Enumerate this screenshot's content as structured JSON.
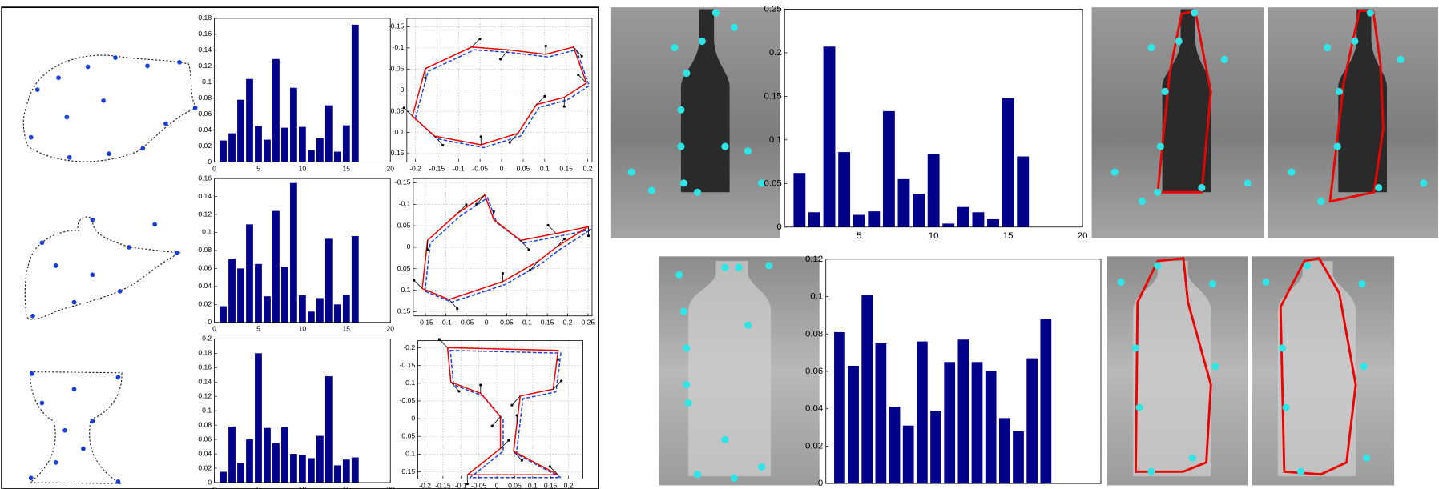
{
  "chart_data": [
    {
      "type": "bar",
      "color": "#00008b",
      "categories": [
        "1",
        "2",
        "3",
        "4",
        "5",
        "6",
        "7",
        "8",
        "9",
        "10",
        "11",
        "12",
        "13",
        "14",
        "15",
        "16"
      ],
      "values": [
        0.027,
        0.036,
        0.078,
        0.104,
        0.045,
        0.028,
        0.129,
        0.043,
        0.093,
        0.044,
        0.015,
        0.03,
        0.071,
        0.013,
        0.046,
        0.172
      ],
      "xlim": [
        0,
        20
      ],
      "xticks": [
        0,
        5,
        10,
        15,
        20
      ],
      "ylim": [
        0,
        0.18
      ],
      "yticks": [
        0,
        0.02,
        0.04,
        0.06,
        0.08,
        0.1,
        0.12,
        0.14,
        0.16,
        0.18
      ],
      "grid": false
    },
    {
      "type": "shape",
      "xlim": [
        -0.22,
        0.21
      ],
      "xticks": [
        -0.2,
        -0.15,
        -0.1,
        -0.05,
        0,
        0.05,
        0.1,
        0.15,
        0.2
      ],
      "ylim": [
        -0.17,
        0.17
      ],
      "yticks": [
        -0.15,
        -0.1,
        -0.05,
        0,
        0.05,
        0.1,
        0.15
      ],
      "y_inverted": true,
      "grid": true
    },
    {
      "type": "bar",
      "color": "#00008b",
      "categories": [
        "1",
        "2",
        "3",
        "4",
        "5",
        "6",
        "7",
        "8",
        "9",
        "10",
        "11",
        "12",
        "13",
        "14",
        "15",
        "16"
      ],
      "values": [
        0.018,
        0.071,
        0.06,
        0.109,
        0.065,
        0.029,
        0.124,
        0.062,
        0.155,
        0.03,
        0.012,
        0.027,
        0.093,
        0.02,
        0.031,
        0.096
      ],
      "xlim": [
        0,
        20
      ],
      "xticks": [
        0,
        5,
        10,
        15,
        20
      ],
      "ylim": [
        0,
        0.16
      ],
      "yticks": [
        0,
        0.02,
        0.04,
        0.06,
        0.08,
        0.1,
        0.12,
        0.14,
        0.16
      ],
      "grid": false
    },
    {
      "type": "shape",
      "xlim": [
        -0.18,
        0.26
      ],
      "xticks": [
        -0.15,
        -0.1,
        -0.05,
        0,
        0.05,
        0.1,
        0.15,
        0.2,
        0.25
      ],
      "ylim": [
        -0.16,
        0.16
      ],
      "yticks": [
        -0.15,
        -0.1,
        -0.05,
        0,
        0.05,
        0.1,
        0.15
      ],
      "y_inverted": true,
      "grid": true
    },
    {
      "type": "bar",
      "color": "#00008b",
      "categories": [
        "1",
        "2",
        "3",
        "4",
        "5",
        "6",
        "7",
        "8",
        "9",
        "10",
        "11",
        "12",
        "13",
        "14",
        "15",
        "16"
      ],
      "values": [
        0.015,
        0.078,
        0.027,
        0.06,
        0.18,
        0.076,
        0.055,
        0.077,
        0.04,
        0.039,
        0.034,
        0.065,
        0.148,
        0.024,
        0.032,
        0.035
      ],
      "xlim": [
        0,
        20
      ],
      "xticks": [
        0,
        5,
        10,
        15,
        20
      ],
      "ylim": [
        0,
        0.2
      ],
      "yticks": [
        0,
        0.02,
        0.04,
        0.06,
        0.08,
        0.1,
        0.12,
        0.14,
        0.16,
        0.18,
        0.2
      ],
      "grid": false
    },
    {
      "type": "shape",
      "xlim": [
        -0.22,
        0.24
      ],
      "xticks": [
        -0.2,
        -0.15,
        -0.1,
        -0.05,
        0,
        0.05,
        0.1,
        0.15,
        0.2
      ],
      "ylim": [
        -0.22,
        0.17
      ],
      "yticks": [
        -0.2,
        -0.15,
        -0.1,
        -0.05,
        0,
        0.05,
        0.1,
        0.15
      ],
      "y_inverted": true,
      "grid": true
    },
    {
      "type": "bar",
      "color": "#00008b",
      "categories": [
        "1",
        "2",
        "3",
        "4",
        "5",
        "6",
        "7",
        "8",
        "9",
        "10",
        "11",
        "12",
        "13",
        "14",
        "15",
        "16"
      ],
      "values": [
        0.062,
        0.017,
        0.207,
        0.086,
        0.014,
        0.018,
        0.133,
        0.055,
        0.038,
        0.084,
        0.004,
        0.023,
        0.017,
        0.009,
        0.148,
        0.081
      ],
      "xlim": [
        0,
        20
      ],
      "xticks": [
        5,
        10,
        15,
        20
      ],
      "ylim": [
        0,
        0.25
      ],
      "yticks": [
        0,
        0.05,
        0.1,
        0.15,
        0.2,
        0.25
      ],
      "grid": false
    },
    {
      "type": "bar",
      "color": "#00008b",
      "categories": [
        "1",
        "2",
        "3",
        "4",
        "5",
        "6",
        "7",
        "8",
        "9",
        "10",
        "11",
        "12",
        "13",
        "14",
        "15",
        "16"
      ],
      "values": [
        0.081,
        0.063,
        0.101,
        0.075,
        0.041,
        0.031,
        0.076,
        0.039,
        0.065,
        0.077,
        0.065,
        0.06,
        0.035,
        0.028,
        0.067,
        0.088
      ],
      "xlim": [
        0,
        20
      ],
      "xticks": [
        0,
        5,
        10,
        15,
        20
      ],
      "ylim": [
        0,
        0.12
      ],
      "yticks": [
        0,
        0.02,
        0.04,
        0.06,
        0.08,
        0.1,
        0.12
      ],
      "grid": false
    }
  ]
}
